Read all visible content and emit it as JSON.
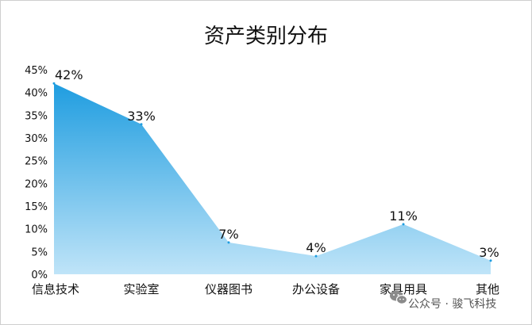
{
  "chart_data": {
    "type": "area",
    "title": "资产类别分布",
    "categories": [
      "信息技术",
      "实验室",
      "仪器图书",
      "办公设备",
      "家具用具",
      "其他"
    ],
    "values": [
      42,
      33,
      7,
      4,
      11,
      3
    ],
    "data_labels": [
      "42%",
      "33%",
      "7%",
      "4%",
      "11%",
      "3%"
    ],
    "y_ticks": [
      "0%",
      "5%",
      "10%",
      "15%",
      "20%",
      "25%",
      "30%",
      "35%",
      "40%",
      "45%"
    ],
    "ylim": [
      0,
      45
    ],
    "xlabel": "",
    "ylabel": "",
    "grid": false,
    "legend": "none",
    "colors": {
      "fill_top": "#1f9de0",
      "fill_bottom": "#bfe4f8",
      "text": "#111111"
    }
  },
  "watermark": {
    "icon": "wechat-icon",
    "text": "公众号 · 骏飞科技"
  }
}
